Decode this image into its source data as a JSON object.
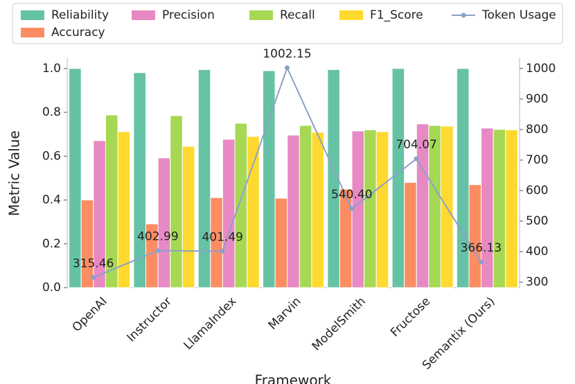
{
  "chart_data": {
    "type": "bar",
    "y_label": "Metric Value",
    "x_label": "Framework",
    "categories": [
      "OpenAI",
      "Instructor",
      "LlamaIndex",
      "Marvin",
      "ModelSmith",
      "Fructose",
      "Semantix (Ours)"
    ],
    "series": [
      {
        "name": "Reliability",
        "color": "#66c2a5",
        "values": [
          1.0,
          0.981,
          0.995,
          0.99,
          0.995,
          1.0,
          1.0
        ]
      },
      {
        "name": "Accuracy",
        "color": "#fc8d62",
        "values": [
          0.4,
          0.291,
          0.411,
          0.408,
          0.45,
          0.48,
          0.47
        ]
      },
      {
        "name": "Precision",
        "color": "#e78ac3",
        "values": [
          0.671,
          0.592,
          0.677,
          0.696,
          0.715,
          0.747,
          0.728
        ]
      },
      {
        "name": "Recall",
        "color": "#a6d854",
        "values": [
          0.788,
          0.785,
          0.75,
          0.74,
          0.72,
          0.74,
          0.722
        ]
      },
      {
        "name": "F1_Score",
        "color": "#ffd92f",
        "values": [
          0.712,
          0.645,
          0.69,
          0.709,
          0.712,
          0.737,
          0.72
        ]
      },
      {
        "name": "Token Usage",
        "type": "line",
        "axis": "y2",
        "color": "#8da0cb",
        "values": [
          315.46,
          402.99,
          401.49,
          1002.15,
          540.4,
          704.07,
          366.13
        ],
        "value_labels": [
          "315.46",
          "402.99",
          "401.49",
          "1002.15",
          "540.40",
          "704.07",
          "366.13"
        ]
      }
    ],
    "ylim": [
      0,
      1.05
    ],
    "yticks": [
      {
        "value": 0,
        "label": "0.0"
      },
      {
        "value": 0.2,
        "label": "0.2"
      },
      {
        "value": 0.4,
        "label": "0.4"
      },
      {
        "value": 0.6,
        "label": "0.6"
      },
      {
        "value": 0.8,
        "label": "0.8"
      },
      {
        "value": 1,
        "label": "1.0"
      }
    ],
    "y2lim": [
      282,
      1036
    ],
    "y2ticks": [
      300,
      400,
      500,
      600,
      700,
      800,
      900,
      1000
    ],
    "grid": false,
    "legend": "top"
  }
}
